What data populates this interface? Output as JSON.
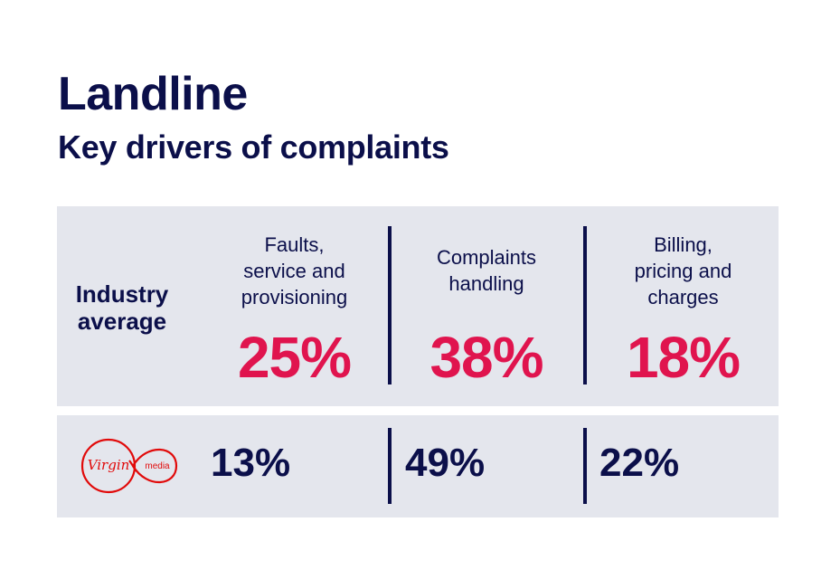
{
  "header": {
    "title": "Landline",
    "subtitle": "Key drivers of complaints"
  },
  "industry": {
    "row_label": "Industry average",
    "accent_color": "#e0144e"
  },
  "provider": {
    "logo_icon": "virgin-media-logo",
    "logo_text_1": "Virgin",
    "logo_text_2": "media",
    "logo_color": "#e10a0a"
  },
  "chart_data": {
    "type": "table",
    "title": "Landline",
    "subtitle": "Key drivers of complaints",
    "categories": [
      "Faults, service and provisioning",
      "Complaints handling",
      "Billing, pricing and charges"
    ],
    "series": [
      {
        "name": "Industry average",
        "values": [
          25,
          38,
          18
        ],
        "display": [
          "25%",
          "38%",
          "18%"
        ]
      },
      {
        "values": [
          13,
          49,
          22
        ],
        "display": [
          "13%",
          "49%",
          "22%"
        ]
      }
    ],
    "category_lines": [
      [
        "Faults,",
        "service and",
        "provisioning"
      ],
      [
        "Complaints",
        "handling"
      ],
      [
        "Billing,",
        "pricing and",
        "charges"
      ]
    ]
  }
}
